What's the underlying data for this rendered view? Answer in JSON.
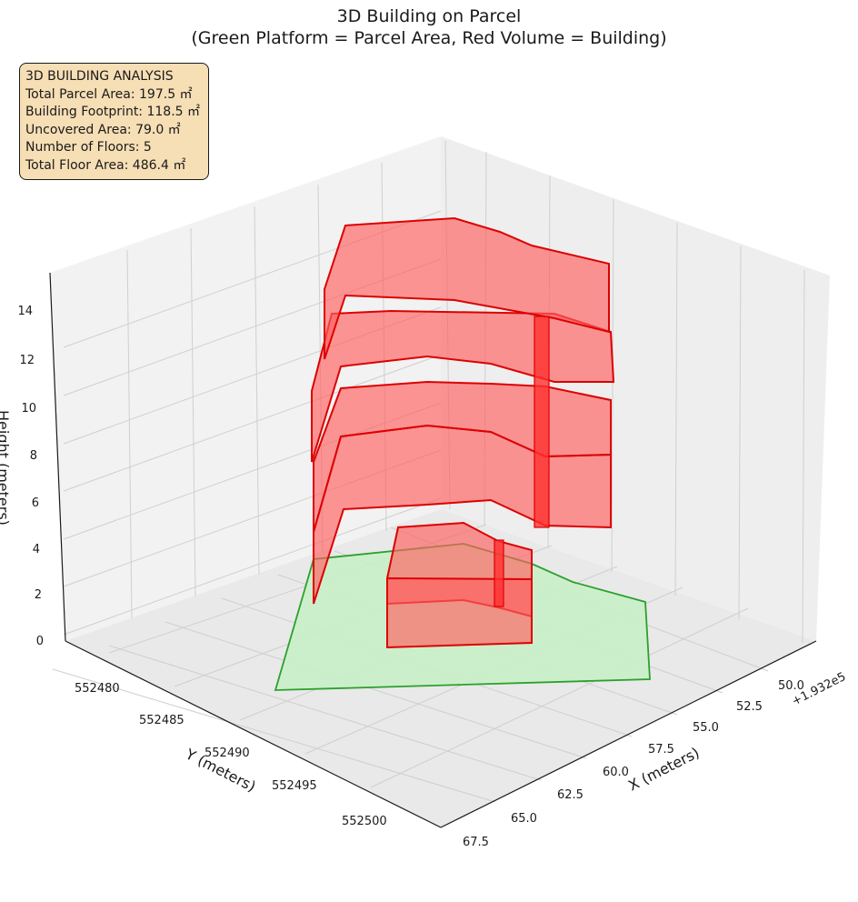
{
  "title": {
    "line1": "3D Building on Parcel",
    "line2": "(Green Platform = Parcel Area, Red Volume = Building)"
  },
  "info": {
    "heading": "3D BUILDING ANALYSIS",
    "lines": [
      "Total Parcel Area: 197.5 ㎡",
      "Building Footprint: 118.5 ㎡",
      "Uncovered Area: 79.0 ㎡",
      "Number of Floors: 5",
      "Total Floor Area: 486.4 ㎡"
    ]
  },
  "chart_data": {
    "type": "3d-polygons",
    "title": "3D Building on Parcel\n(Green Platform = Parcel Area, Red Volume = Building)",
    "x_axis": {
      "label": "X (meters)",
      "ticks": [
        "50.0",
        "52.5",
        "55.0",
        "57.5",
        "60.0",
        "62.5",
        "65.0",
        "67.5"
      ],
      "offset_text": "+1.932e5"
    },
    "y_axis": {
      "label": "Y (meters)",
      "ticks": [
        "552480",
        "552485",
        "552490",
        "552495",
        "552500"
      ]
    },
    "z_axis": {
      "label": "Height (meters)",
      "ticks": [
        "0",
        "2",
        "4",
        "6",
        "8",
        "10",
        "12",
        "14"
      ],
      "zlim": [
        0,
        15
      ]
    },
    "parcel": {
      "name": "Green Platform = Parcel Area",
      "color": "#90ee90",
      "edge_color": "#2ca02c",
      "height": 0
    },
    "building": {
      "name": "Red Volume = Building",
      "color": "#ff0000",
      "floors": 5,
      "floor_height_m": 3.0
    },
    "grid": true,
    "colors": {
      "parcel_fill": "#c8f0c8",
      "parcel_edge": "#2ca02c",
      "building_fill": "#ff6060",
      "building_edge": "#dd0000",
      "pane": "#f2f2f2",
      "grid": "#cfcfcf"
    }
  }
}
